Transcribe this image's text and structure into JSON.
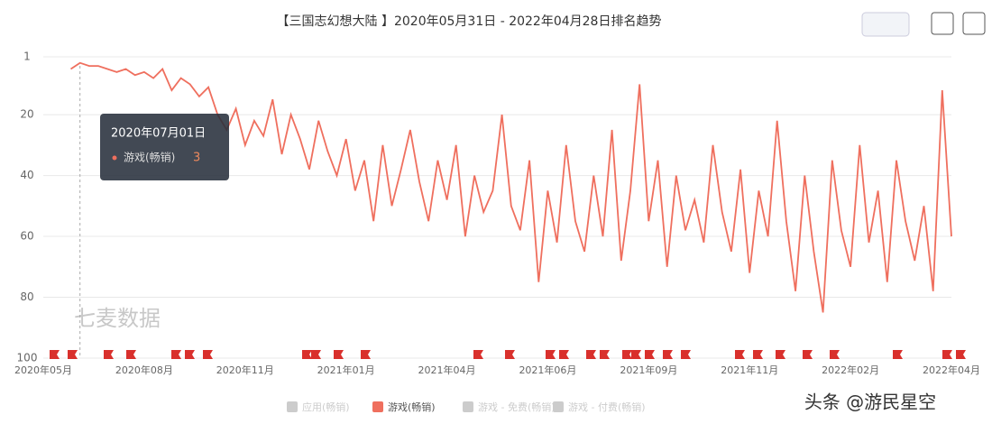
{
  "chart_data": {
    "type": "line",
    "title": "【三国志幻想大陆 】2020年05月31日 - 2022年04月28日排名趋势",
    "categories": [
      "2020年05月",
      null,
      null,
      null,
      null,
      null,
      null,
      null,
      null,
      null,
      null,
      "2020年08月",
      null,
      null,
      null,
      null,
      null,
      null,
      null,
      null,
      null,
      null,
      "2020年11月",
      null,
      null,
      null,
      null,
      null,
      null,
      null,
      null,
      null,
      null,
      "2021年01月",
      null,
      null,
      null,
      null,
      null,
      null,
      null,
      null,
      null,
      null,
      "2021年04月",
      null,
      null,
      null,
      null,
      null,
      null,
      null,
      null,
      null,
      null,
      "2021年06月",
      null,
      null,
      null,
      null,
      null,
      null,
      null,
      null,
      null,
      null,
      "2021年09月",
      null,
      null,
      null,
      null,
      null,
      null,
      null,
      null,
      null,
      null,
      "2021年11月",
      null,
      null,
      null,
      null,
      null,
      null,
      null,
      null,
      null,
      null,
      "2022年02月",
      null,
      null,
      null,
      null,
      null,
      null,
      null,
      null,
      null,
      null,
      "2022年04月"
    ],
    "series": [
      {
        "name": "游戏(畅销)",
        "color": "#ef6f5e",
        "values": [
          null,
          null,
          null,
          5,
          3,
          4,
          4,
          5,
          6,
          5,
          7,
          6,
          8,
          5,
          12,
          8,
          10,
          14,
          11,
          20,
          25,
          18,
          30,
          22,
          27,
          15,
          33,
          20,
          28,
          38,
          22,
          32,
          40,
          28,
          45,
          35,
          55,
          30,
          50,
          38,
          25,
          42,
          55,
          35,
          48,
          30,
          60,
          40,
          52,
          45,
          20,
          50,
          58,
          35,
          75,
          45,
          62,
          30,
          55,
          65,
          40,
          60,
          25,
          68,
          45,
          10,
          55,
          35,
          70,
          40,
          58,
          48,
          62,
          30,
          52,
          65,
          38,
          72,
          45,
          60,
          22,
          55,
          78,
          40,
          65,
          85,
          35,
          58,
          70,
          30,
          62,
          45,
          75,
          35,
          55,
          68,
          50,
          78,
          12,
          60
        ]
      }
    ],
    "inactive_legend": [
      "应用(畅销)",
      "游戏 - 免费(畅销)",
      "游戏 - 付费(畅销)"
    ],
    "ylim": [
      100,
      1
    ],
    "yticks": [
      1,
      20,
      40,
      60,
      80,
      100
    ],
    "grid": true,
    "tooltip": {
      "date": "2020年07月01日",
      "index": 4
    },
    "watermark": "七麦数据",
    "credit": "头条 @游民星空"
  }
}
